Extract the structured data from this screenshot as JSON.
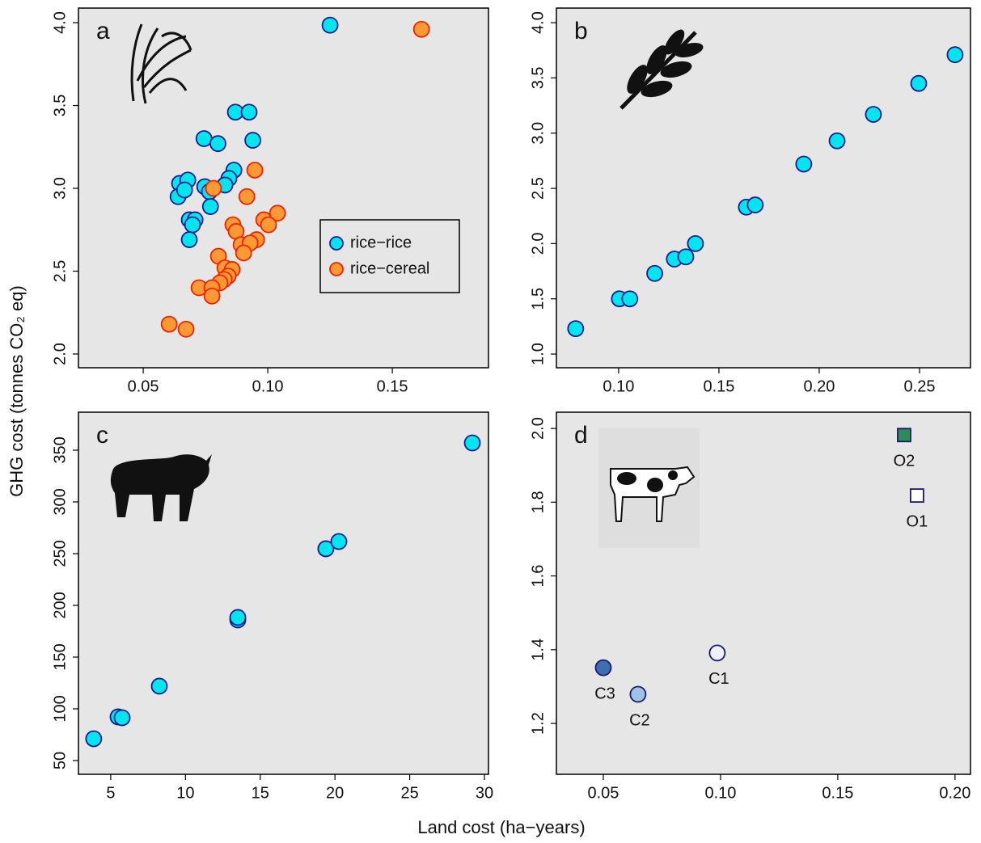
{
  "ylabel": "GHG cost (tonnes CO₂ eq)",
  "xlabel": "Land cost (ha−years)",
  "chart_data": [
    {
      "type": "scatter",
      "label": "a",
      "xlim": [
        0.024,
        0.1886
      ],
      "ylim": [
        1.917,
        4.088
      ],
      "xticks": [
        0.05,
        {
          "value": 0.1,
          "label": "0.10"
        },
        0.15
      ],
      "yticks": [
        {
          "value": 2,
          "label": "2.0"
        },
        2.5,
        {
          "value": 3,
          "label": "3.0"
        },
        3.5,
        {
          "value": 4,
          "label": "4.0"
        }
      ],
      "legend": "right",
      "series": [
        {
          "name": "rice−rice",
          "color": "#00e5ee",
          "edge": "#1a1a8c",
          "marker": "circle",
          "x": [
            0.125,
            0.0744,
            0.08,
            0.087,
            0.0925,
            0.094,
            0.0864,
            0.0844,
            0.0828,
            0.0747,
            0.0646,
            0.0679,
            0.064,
            0.0666,
            0.0766,
            0.077,
            0.0685,
            0.0708,
            0.0698,
            0.0685
          ],
          "values": [
            3.985,
            3.3,
            3.27,
            3.46,
            3.46,
            3.29,
            3.11,
            3.06,
            3.02,
            3.01,
            3.03,
            3.05,
            2.95,
            2.99,
            2.98,
            2.89,
            2.81,
            2.81,
            2.78,
            2.69
          ]
        },
        {
          "name": "rice−cereal",
          "color": "#ff9933",
          "edge": "#ee2200",
          "marker": "circle",
          "x": [
            0.1617,
            0.0948,
            0.0782,
            0.0916,
            0.1039,
            0.0984,
            0.1003,
            0.086,
            0.0873,
            0.0955,
            0.0893,
            0.0929,
            0.0903,
            0.0802,
            0.0828,
            0.0857,
            0.0841,
            0.0825,
            0.0808,
            0.0724,
            0.0776,
            0.0776,
            0.0604,
            0.0672
          ],
          "values": [
            3.96,
            3.11,
            3.0,
            2.95,
            2.85,
            2.81,
            2.78,
            2.78,
            2.74,
            2.69,
            2.66,
            2.67,
            2.61,
            2.59,
            2.52,
            2.51,
            2.47,
            2.45,
            2.43,
            2.4,
            2.4,
            2.35,
            2.18,
            2.15
          ]
        }
      ]
    },
    {
      "type": "scatter",
      "label": "b",
      "xlim": [
        0.069,
        0.2754
      ],
      "ylim": [
        0.876,
        4.132
      ],
      "xticks": [
        {
          "value": 0.1,
          "label": "0.10"
        },
        0.15,
        {
          "value": 0.2,
          "label": "0.20"
        },
        0.25
      ],
      "yticks": [
        {
          "value": 1,
          "label": "1.0"
        },
        1.5,
        {
          "value": 2,
          "label": "2.0"
        },
        2.5,
        {
          "value": 3,
          "label": "3.0"
        },
        3.5,
        {
          "value": 4,
          "label": "4.0"
        }
      ],
      "series": [
        {
          "color": "#00e5ee",
          "edge": "#1a1a8c",
          "marker": "circle",
          "x": [
            0.0786,
            0.1004,
            0.1056,
            0.118,
            0.1278,
            0.1335,
            0.1383,
            0.1637,
            0.1681,
            0.1923,
            0.2089,
            0.227,
            0.2496,
            0.2677
          ],
          "values": [
            1.23,
            1.5,
            1.5,
            1.73,
            1.86,
            1.88,
            2.0,
            2.33,
            2.35,
            2.72,
            2.93,
            3.17,
            3.45,
            3.71
          ]
        }
      ]
    },
    {
      "type": "scatter",
      "label": "c",
      "xlim": [
        2.84,
        30.27
      ],
      "ylim": [
        36.7,
        386.7
      ],
      "xticks": [
        5,
        10,
        15,
        20,
        25,
        30
      ],
      "yticks": [
        50,
        100,
        150,
        200,
        250,
        300,
        350
      ],
      "series": [
        {
          "color": "#00e5ee",
          "edge": "#1a1a8c",
          "marker": "circle",
          "x": [
            3.86,
            5.49,
            5.76,
            8.25,
            13.5,
            13.5,
            19.39,
            20.26,
            29.19
          ],
          "values": [
            71.1,
            92.2,
            91.4,
            121.9,
            185.9,
            188.3,
            254.7,
            261.7,
            357.0
          ]
        }
      ]
    },
    {
      "type": "scatter",
      "label": "d",
      "xlim": [
        0.03,
        0.2066
      ],
      "ylim": [
        1.062,
        2.044
      ],
      "xticks": [
        0.05,
        {
          "value": 0.1,
          "label": "0.10"
        },
        0.15,
        {
          "value": 0.2,
          "label": "0.20"
        }
      ],
      "yticks": [
        1.2,
        1.4,
        1.6,
        1.8,
        {
          "value": 2,
          "label": "2.0"
        }
      ],
      "series": [
        {
          "name": "C3",
          "color": "#3d6fb0",
          "edge": "#1a1a6c",
          "marker": "circle",
          "x": [
            0.05
          ],
          "values": [
            1.351
          ]
        },
        {
          "name": "C2",
          "color": "#9fc3e6",
          "edge": "#1a1a6c",
          "marker": "circle",
          "x": [
            0.0648
          ],
          "values": [
            1.279
          ]
        },
        {
          "name": "C1",
          "color": "#eef0fb",
          "edge": "#1a1a6c",
          "marker": "circle",
          "x": [
            0.0986
          ],
          "values": [
            1.391
          ]
        },
        {
          "name": "O2",
          "color": "#2e8b57",
          "edge": "#1a1a6c",
          "marker": "square",
          "x": [
            0.1783
          ],
          "values": [
            1.982
          ]
        },
        {
          "name": "O1",
          "color": "#ffffff",
          "edge": "#1a1a6c",
          "marker": "square",
          "x": [
            0.1838
          ],
          "values": [
            1.818
          ]
        }
      ]
    }
  ]
}
